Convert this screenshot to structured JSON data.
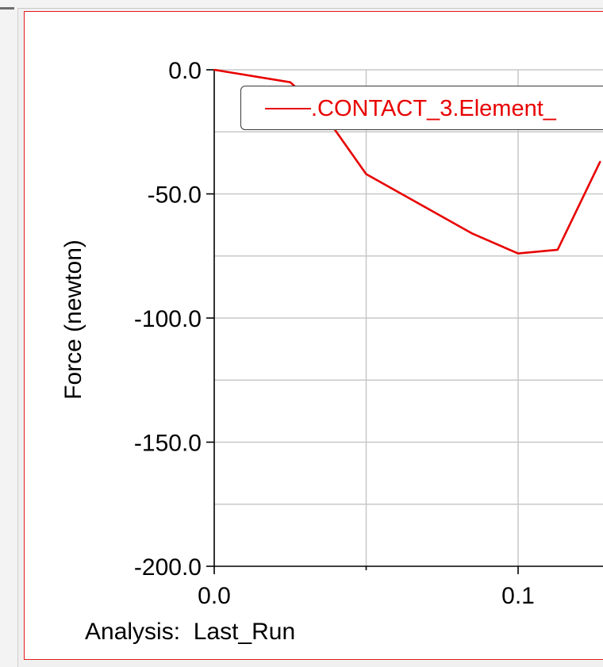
{
  "colors": {
    "series": "#e80000",
    "grid": "#c8c8c8",
    "axis": "#000000",
    "frame": "#e51b1b"
  },
  "chart_data": {
    "type": "line",
    "xlabel": "",
    "ylabel": "Force (newton)",
    "x_ticks": [
      "0.0",
      "0.1"
    ],
    "y_ticks": [
      "0.0",
      "-50.0",
      "-100.0",
      "-150.0",
      "-200.0"
    ],
    "xlim": [
      0.0,
      0.127
    ],
    "ylim": [
      -200.0,
      0.0
    ],
    "grid": true,
    "legend_position": "top",
    "series": [
      {
        "name": ".CONTACT_3.Element_",
        "x": [
          0.0,
          0.025,
          0.035,
          0.05,
          0.085,
          0.1,
          0.113,
          0.127
        ],
        "y": [
          0.0,
          -5.0,
          -16.0,
          -42.0,
          -66.0,
          -74.0,
          -72.5,
          -37.0
        ]
      }
    ]
  },
  "footer": {
    "analysis_text": "Analysis:  Last_Run"
  }
}
